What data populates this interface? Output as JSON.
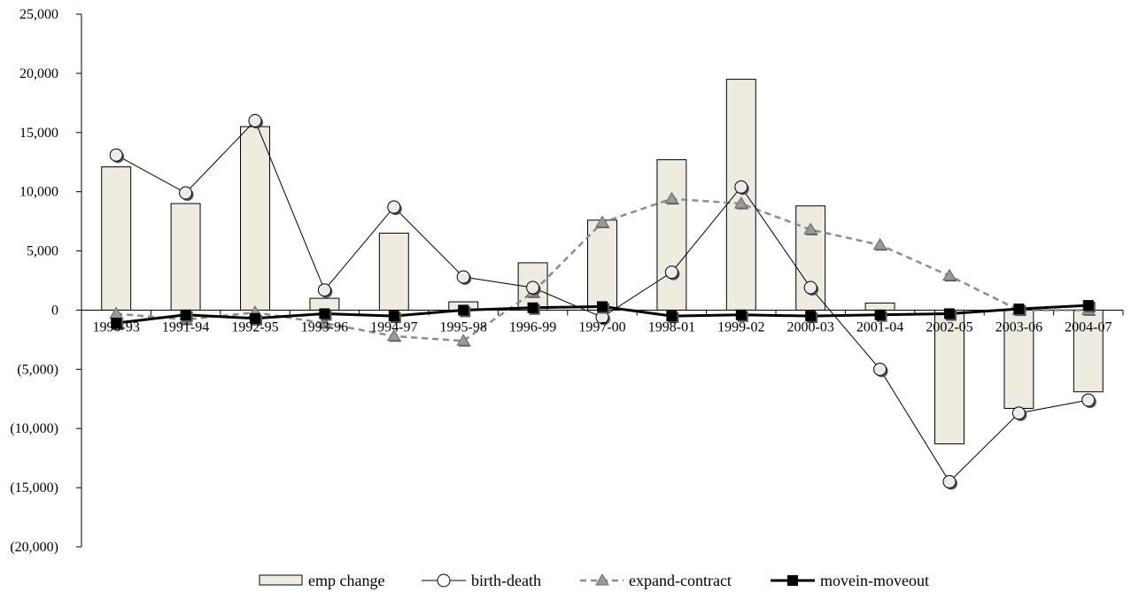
{
  "chart_data": {
    "type": "bar",
    "categories": [
      "1990-93",
      "1991-94",
      "1992-95",
      "1993-96",
      "1994-97",
      "1995-98",
      "1996-99",
      "1997-00",
      "1998-01",
      "1999-02",
      "2000-03",
      "2001-04",
      "2002-05",
      "2003-06",
      "2004-07"
    ],
    "ylim": [
      -20000,
      25000
    ],
    "y_ticks": [
      25000,
      20000,
      15000,
      10000,
      5000,
      0,
      -5000,
      -10000,
      -15000,
      -20000
    ],
    "y_tick_labels": [
      "25,000",
      "20,000",
      "15,000",
      "10,000",
      "5,000",
      "0",
      "(5,000)",
      "(10,000)",
      "(15,000)",
      "(20,000)"
    ],
    "grid": false,
    "legend_position": "bottom",
    "series": [
      {
        "name": "emp change",
        "type": "bar",
        "color": "#eeebe0",
        "values": [
          12100,
          9000,
          15500,
          1000,
          6500,
          700,
          4000,
          7600,
          12700,
          19500,
          8800,
          600,
          -11300,
          -8300,
          -6900
        ]
      },
      {
        "name": "birth-death",
        "type": "line",
        "marker": "circle",
        "color": "#000000",
        "values": [
          13100,
          9900,
          16000,
          1700,
          8700,
          2800,
          1900,
          -600,
          3200,
          10400,
          1900,
          -5000,
          -14500,
          -8700,
          -7600
        ]
      },
      {
        "name": "expand-contract",
        "type": "line",
        "marker": "triangle",
        "dash": "dashed",
        "color": "#8c8c8c",
        "values": [
          -300,
          -800,
          -200,
          -1100,
          -2200,
          -2600,
          1500,
          7400,
          9400,
          9000,
          6800,
          5500,
          2900,
          0,
          0
        ]
      },
      {
        "name": "movein-moveout",
        "type": "line",
        "marker": "square",
        "color": "#000000",
        "values": [
          -1100,
          -400,
          -700,
          -300,
          -500,
          0,
          200,
          300,
          -500,
          -400,
          -500,
          -400,
          -300,
          100,
          400
        ]
      }
    ]
  }
}
